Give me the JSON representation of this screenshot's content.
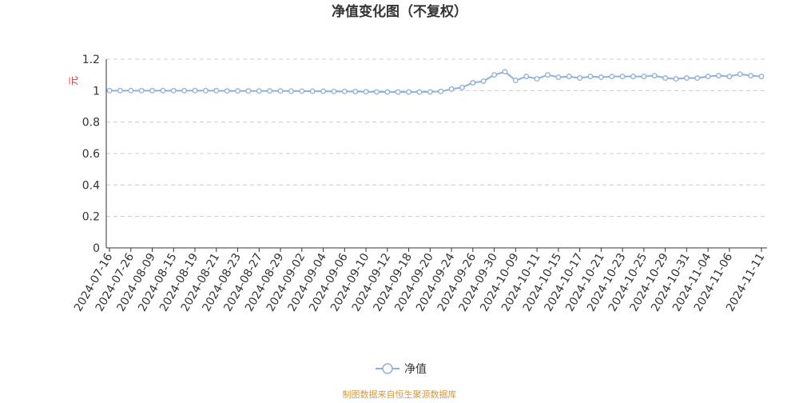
{
  "chart_data": {
    "type": "line",
    "title": "净值变化图（不复权）",
    "y_label": "元",
    "categories": [
      "2024-07-16",
      null,
      "2024-07-26",
      null,
      "2024-08-09",
      null,
      "2024-08-15",
      null,
      "2024-08-19",
      null,
      "2024-08-21",
      null,
      "2024-08-23",
      null,
      "2024-08-27",
      null,
      "2024-08-29",
      null,
      "2024-09-02",
      null,
      "2024-09-04",
      null,
      "2024-09-06",
      null,
      "2024-09-10",
      null,
      "2024-09-12",
      null,
      "2024-09-18",
      null,
      "2024-09-20",
      null,
      "2024-09-24",
      null,
      "2024-09-26",
      null,
      "2024-09-30",
      null,
      "2024-10-09",
      null,
      "2024-10-11",
      null,
      "2024-10-15",
      null,
      "2024-10-17",
      null,
      "2024-10-21",
      null,
      "2024-10-23",
      null,
      "2024-10-25",
      null,
      "2024-10-29",
      null,
      "2024-10-31",
      null,
      "2024-11-04",
      null,
      "2024-11-06",
      null,
      null,
      "2024-11-11"
    ],
    "series": [
      {
        "name": "净值",
        "color": "#8fb0dc",
        "values": [
          1.0,
          1.0,
          1.0,
          1.0,
          1.0,
          1.0,
          1.0,
          1.0,
          1.0,
          1.0,
          1.0,
          0.998,
          0.998,
          0.998,
          0.998,
          0.998,
          0.998,
          0.997,
          0.997,
          0.996,
          0.996,
          0.995,
          0.995,
          0.994,
          0.993,
          0.992,
          0.991,
          0.991,
          0.991,
          0.991,
          0.992,
          0.995,
          1.01,
          1.02,
          1.05,
          1.06,
          1.1,
          1.12,
          1.065,
          1.09,
          1.075,
          1.1,
          1.085,
          1.09,
          1.08,
          1.09,
          1.085,
          1.09,
          1.09,
          1.09,
          1.09,
          1.095,
          1.08,
          1.075,
          1.08,
          1.08,
          1.09,
          1.095,
          1.09,
          1.105,
          1.095,
          1.09
        ]
      }
    ],
    "ylim": [
      0,
      1.2
    ],
    "yticks": [
      0,
      0.2,
      0.4,
      0.6,
      0.8,
      1,
      1.2
    ],
    "grid": true,
    "legend": "bottom",
    "source": "制图数据来自恒生聚源数据库"
  }
}
